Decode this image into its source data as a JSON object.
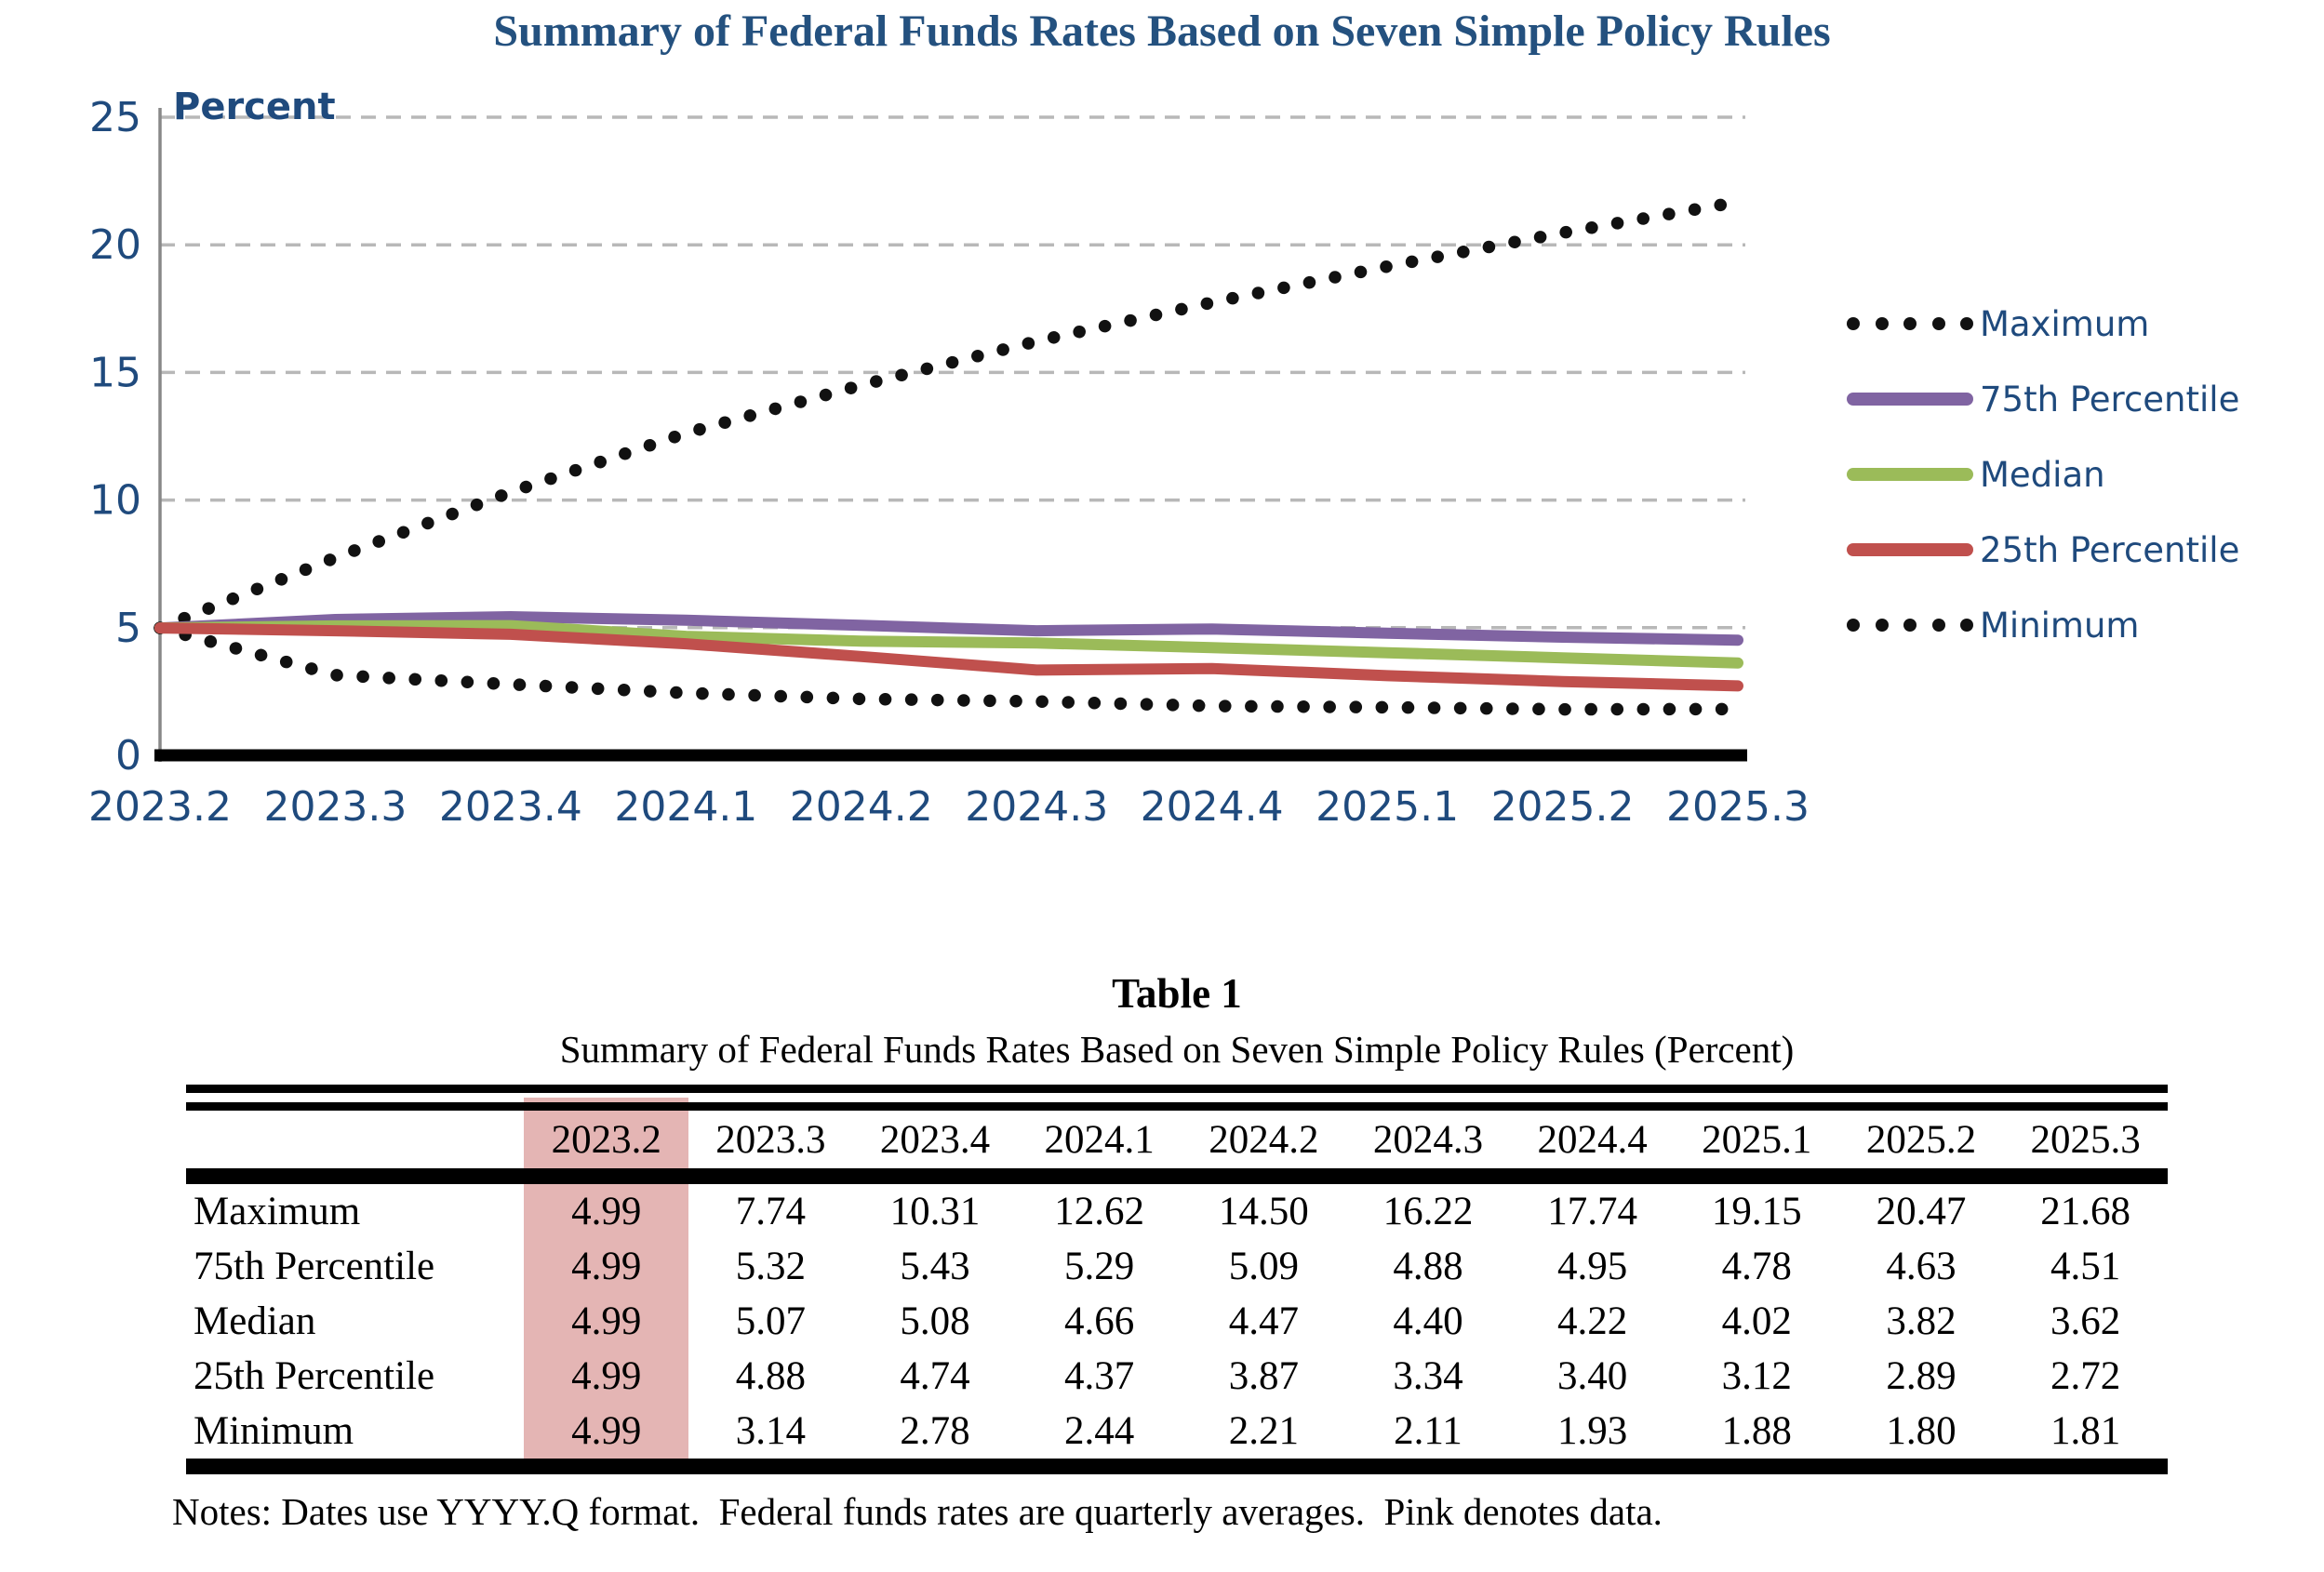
{
  "page": {
    "title": "Summary of Federal Funds Rates Based on Seven Simple Policy Rules"
  },
  "colors": {
    "title_blue": "#24517F",
    "axis_blue": "#1F4A7D",
    "gridline_gray": "#B8B8B8",
    "y_axis_gray": "#888888",
    "x_axis_black": "#000000",
    "highlight_pink": "#E4B5B4",
    "series_purple": "#8064A2",
    "series_green": "#9BBB59",
    "series_red": "#C0504D",
    "series_black": "#111111"
  },
  "chart_data": {
    "type": "line",
    "title": "Summary of Federal Funds Rates Based on Seven Simple Policy Rules",
    "ylabel": "Percent",
    "xlabel": "",
    "categories": [
      "2023.2",
      "2023.3",
      "2023.4",
      "2024.1",
      "2024.2",
      "2024.3",
      "2024.4",
      "2025.1",
      "2025.2",
      "2025.3"
    ],
    "ylim": [
      0,
      25
    ],
    "yticks": [
      0,
      5,
      10,
      15,
      20,
      25
    ],
    "grid": "horizontal-dashed",
    "legend_position": "right",
    "series": [
      {
        "name": "Maximum",
        "style": "dotted",
        "color": "#111111",
        "values": [
          4.99,
          7.74,
          10.31,
          12.62,
          14.5,
          16.22,
          17.74,
          19.15,
          20.47,
          21.68
        ]
      },
      {
        "name": "75th Percentile",
        "style": "solid",
        "color": "#8064A2",
        "values": [
          4.99,
          5.32,
          5.43,
          5.29,
          5.09,
          4.88,
          4.95,
          4.78,
          4.63,
          4.51
        ]
      },
      {
        "name": "Median",
        "style": "solid",
        "color": "#9BBB59",
        "values": [
          4.99,
          5.07,
          5.08,
          4.66,
          4.47,
          4.4,
          4.22,
          4.02,
          3.82,
          3.62
        ]
      },
      {
        "name": "25th Percentile",
        "style": "solid",
        "color": "#C0504D",
        "values": [
          4.99,
          4.88,
          4.74,
          4.37,
          3.87,
          3.34,
          3.4,
          3.12,
          2.89,
          2.72
        ]
      },
      {
        "name": "Minimum",
        "style": "dotted",
        "color": "#111111",
        "values": [
          4.99,
          3.14,
          2.78,
          2.44,
          2.21,
          2.11,
          1.93,
          1.88,
          1.8,
          1.81
        ]
      }
    ]
  },
  "table": {
    "title": "Table 1",
    "subtitle": "Summary of Federal Funds Rates Based on Seven Simple Policy Rules (Percent)",
    "columns": [
      "2023.2",
      "2023.3",
      "2023.4",
      "2024.1",
      "2024.2",
      "2024.3",
      "2024.4",
      "2025.1",
      "2025.2",
      "2025.3"
    ],
    "highlighted_column": "2023.2",
    "rows": [
      {
        "label": "Maximum",
        "values": [
          "4.99",
          "7.74",
          "10.31",
          "12.62",
          "14.50",
          "16.22",
          "17.74",
          "19.15",
          "20.47",
          "21.68"
        ]
      },
      {
        "label": "75th Percentile",
        "values": [
          "4.99",
          "5.32",
          "5.43",
          "5.29",
          "5.09",
          "4.88",
          "4.95",
          "4.78",
          "4.63",
          "4.51"
        ]
      },
      {
        "label": "Median",
        "values": [
          "4.99",
          "5.07",
          "5.08",
          "4.66",
          "4.47",
          "4.40",
          "4.22",
          "4.02",
          "3.82",
          "3.62"
        ]
      },
      {
        "label": "25th Percentile",
        "values": [
          "4.99",
          "4.88",
          "4.74",
          "4.37",
          "3.87",
          "3.34",
          "3.40",
          "3.12",
          "2.89",
          "2.72"
        ]
      },
      {
        "label": "Minimum",
        "values": [
          "4.99",
          "3.14",
          "2.78",
          "2.44",
          "2.21",
          "2.11",
          "1.93",
          "1.88",
          "1.80",
          "1.81"
        ]
      }
    ],
    "notes": "Notes: Dates use YYYY.Q format.  Federal funds rates are quarterly averages.  Pink denotes data."
  }
}
